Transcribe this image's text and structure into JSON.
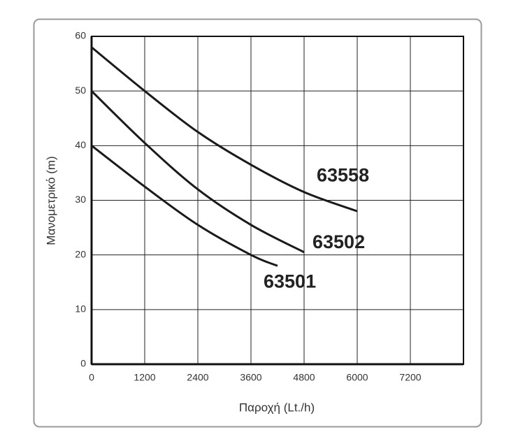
{
  "chart_data": {
    "type": "line",
    "x_label": "Παροχή (Lt./h)",
    "y_label": "Μανομετρικό  (m)",
    "xlim": [
      0,
      8400
    ],
    "xticks": [
      0,
      1200,
      2400,
      3600,
      4800,
      6000,
      7200
    ],
    "ylim": [
      0,
      60
    ],
    "yticks": [
      0,
      10,
      20,
      30,
      40,
      50,
      60
    ],
    "grid": true,
    "series": [
      {
        "name": "63558",
        "color": "#1a1a1a",
        "x": [
          0,
          1200,
          2400,
          3600,
          4800,
          6000
        ],
        "values": [
          58,
          50,
          42.5,
          36.5,
          31.5,
          28
        ]
      },
      {
        "name": "63502",
        "color": "#1a1a1a",
        "x": [
          0,
          1200,
          2400,
          3600,
          4800
        ],
        "values": [
          50,
          40.5,
          32,
          25.5,
          20.5
        ]
      },
      {
        "name": "63501",
        "color": "#1a1a1a",
        "x": [
          0,
          1200,
          2400,
          3600,
          4200
        ],
        "values": [
          40,
          32.5,
          25.5,
          20,
          18
        ]
      }
    ]
  }
}
